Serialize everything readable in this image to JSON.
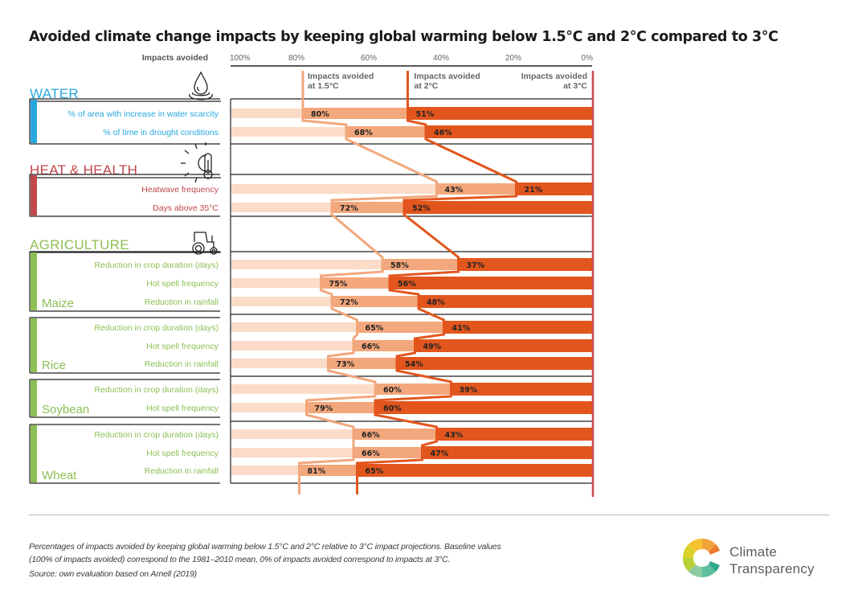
{
  "chart_data": {
    "type": "bar",
    "title": "Avoided climate change impacts by keeping global warming below 1.5°C and 2°C compared to 3°C",
    "xlabel": "Impacts avoided",
    "xlim": [
      100,
      0
    ],
    "x_ticks": [
      "100%",
      "80%",
      "60%",
      "40%",
      "20%",
      "0%"
    ],
    "series_labels": {
      "s15": "Impacts avoided at 1.5°C",
      "s2": "Impacts avoided at 2°C",
      "s3": "Impacts avoided at 3°C"
    },
    "series_label_lines": {
      "s15": [
        "Impacts avoided",
        "at 1.5°C"
      ],
      "s2": [
        "Impacts avoided",
        "at 2°C"
      ],
      "s3": [
        "Impacts avoided",
        "at 3°C"
      ]
    },
    "colors": {
      "s15": "#f3a77c",
      "s15_bg": "#fbdcc8",
      "s2": "#e2561d",
      "s3_line": "#c94f4f",
      "water": "#29a8df",
      "heat": "#c0474b",
      "agri": "#8cbf54"
    },
    "groups": [
      {
        "name": "WATER",
        "icon": "water-drop-icon",
        "color_key": "water",
        "blocks": [
          {
            "subname": "",
            "rows": [
              {
                "label": "% of area with increase in water scarcity",
                "v15": 80,
                "v2": 51
              },
              {
                "label": "% of time in drought conditions",
                "v15": 68,
                "v2": 46
              }
            ]
          }
        ]
      },
      {
        "name": "HEAT & HEALTH",
        "icon": "sun-thermometer-icon",
        "color_key": "heat",
        "blocks": [
          {
            "subname": "",
            "rows": [
              {
                "label": "Heatwave frequency",
                "v15": 43,
                "v2": 21
              },
              {
                "label": "Days above 35°C",
                "v15": 72,
                "v2": 52
              }
            ]
          }
        ]
      },
      {
        "name": "AGRICULTURE",
        "icon": "tractor-icon",
        "color_key": "agri",
        "blocks": [
          {
            "subname": "Maize",
            "rows": [
              {
                "label": "Reduction in crop duration (days)",
                "v15": 58,
                "v2": 37
              },
              {
                "label": "Hot spell frequency",
                "v15": 75,
                "v2": 56
              },
              {
                "label": "Reduction in rainfall",
                "v15": 72,
                "v2": 48
              }
            ]
          },
          {
            "subname": "Rice",
            "rows": [
              {
                "label": "Reduction in crop duration (days)",
                "v15": 65,
                "v2": 41
              },
              {
                "label": "Hot spell frequency",
                "v15": 66,
                "v2": 49
              },
              {
                "label": "Reduction in rainfall",
                "v15": 73,
                "v2": 54
              }
            ]
          },
          {
            "subname": "Soybean",
            "rows": [
              {
                "label": "Reduction in crop duration (days)",
                "v15": 60,
                "v2": 39
              },
              {
                "label": "Hot spell frequency",
                "v15": 79,
                "v2": 60
              }
            ]
          },
          {
            "subname": "Wheat",
            "rows": [
              {
                "label": "Reduction in crop duration (days)",
                "v15": 66,
                "v2": 43
              },
              {
                "label": "Hot spell frequency",
                "v15": 66,
                "v2": 47
              },
              {
                "label": "Reduction in rainfall",
                "v15": 81,
                "v2": 65
              }
            ]
          }
        ]
      }
    ]
  },
  "footer": {
    "note_line1": "Percentages of impacts avoided by keeping global warming below 1.5°C and 2°C relative to 3°C impact projections.  Baseline values",
    "note_line2": "(100% of impacts avoided) correspond to the 1981–2010 mean, 0% of impacts avoided correspond to impacts at 3°C.",
    "source": "Source: own evaluation based on Arnell (2019)",
    "logo_line1": "Climate",
    "logo_line2": "Transparency"
  }
}
